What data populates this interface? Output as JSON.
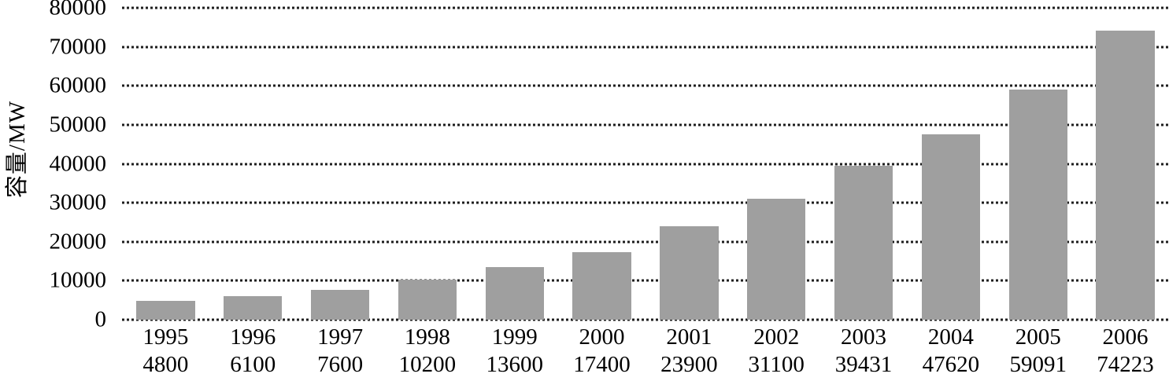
{
  "chart_data": {
    "type": "bar",
    "categories": [
      "1995",
      "1996",
      "1997",
      "1998",
      "1999",
      "2000",
      "2001",
      "2002",
      "2003",
      "2004",
      "2005",
      "2006"
    ],
    "values": [
      4800,
      6100,
      7600,
      10200,
      13600,
      17400,
      23900,
      31100,
      39431,
      47620,
      59091,
      74223
    ],
    "title": "",
    "xlabel": "",
    "ylabel": "容量/MW",
    "ylim": [
      0,
      80000
    ],
    "yticks": [
      0,
      10000,
      20000,
      30000,
      40000,
      50000,
      60000,
      70000,
      80000
    ],
    "grid": "horizontal dotted lines at every y tick, drawn behind bars",
    "legend": "none",
    "x_tick_format": "two lines: year on top, capacity value below",
    "bar_color": "#9f9f9f",
    "gridline_color": "#1e1e1e",
    "text_color": "#000000",
    "background_color": "#ffffff"
  }
}
